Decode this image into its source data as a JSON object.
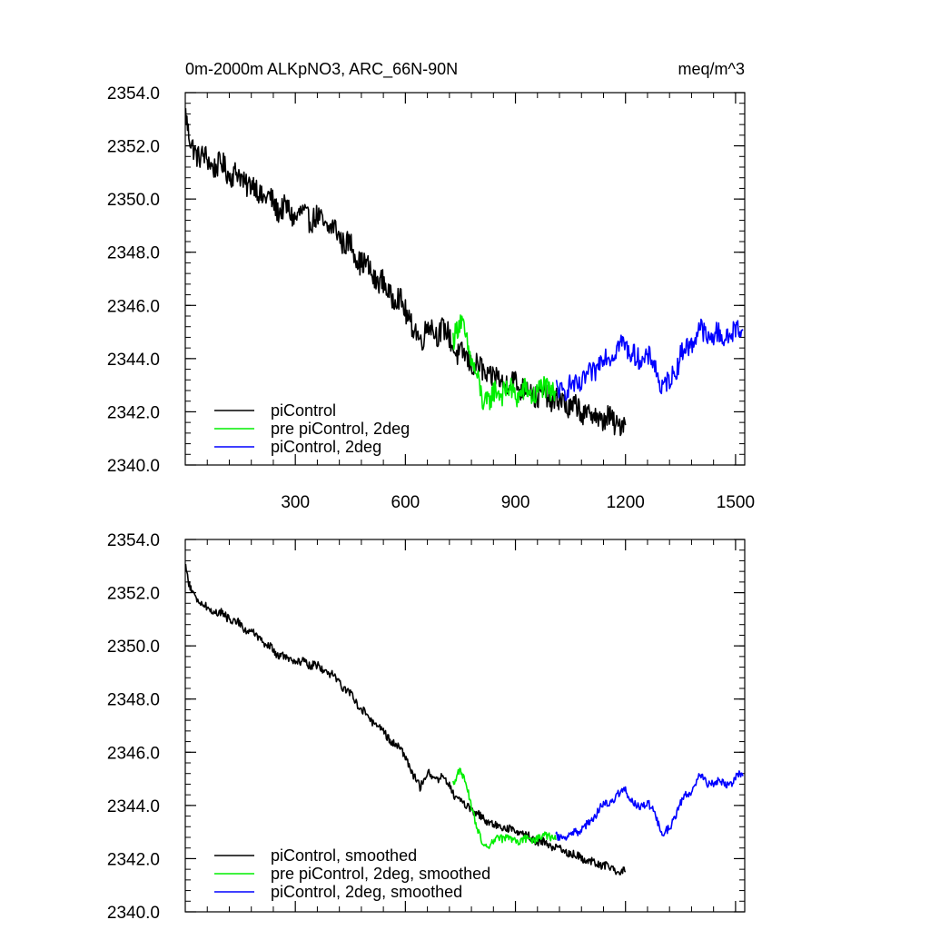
{
  "header": {
    "left_title": "0m-2000m ALKpNO3, ARC_66N-90N",
    "right_title": "meq/m^3"
  },
  "colors": {
    "piControl": "#000000",
    "pre_piControl": "#00ee00",
    "piControl_2deg": "#0000ff"
  },
  "chart_data": [
    {
      "type": "line",
      "xlim": [
        0,
        1525
      ],
      "ylim": [
        2340.0,
        2354.0
      ],
      "x_ticks": [
        300,
        600,
        900,
        1200,
        1500
      ],
      "y_ticks": [
        "2340.0",
        "2342.0",
        "2344.0",
        "2346.0",
        "2348.0",
        "2350.0",
        "2352.0",
        "2354.0"
      ],
      "legend": [
        "piControl",
        "pre piControl, 2deg",
        "piControl, 2deg"
      ],
      "legend_position": "bottom-left",
      "series": [
        {
          "name": "piControl",
          "color": "#000000",
          "noise": 0.45,
          "x": [
            1,
            8,
            15,
            30,
            60,
            100,
            150,
            200,
            250,
            300,
            350,
            400,
            450,
            500,
            550,
            600,
            620,
            640,
            660,
            680,
            700,
            720,
            750,
            780,
            810,
            850,
            900,
            950,
            1000,
            1050,
            1100,
            1150,
            1200
          ],
          "y": [
            2353.2,
            2352.4,
            2352.0,
            2351.8,
            2351.4,
            2351.2,
            2350.8,
            2350.3,
            2349.7,
            2349.4,
            2349.3,
            2348.9,
            2348.2,
            2347.3,
            2346.6,
            2345.9,
            2345.1,
            2344.7,
            2345.3,
            2344.9,
            2345.2,
            2344.7,
            2344.1,
            2343.9,
            2343.5,
            2343.2,
            2343.1,
            2342.7,
            2342.5,
            2342.2,
            2341.9,
            2341.7,
            2341.5
          ]
        },
        {
          "name": "pre piControl, 2deg",
          "color": "#00ee00",
          "noise": 0.45,
          "x": [
            730,
            750,
            770,
            790,
            810,
            830,
            850,
            870,
            890,
            910,
            930,
            950,
            970,
            990,
            1010
          ],
          "y": [
            2344.9,
            2345.3,
            2344.6,
            2343.4,
            2342.5,
            2342.4,
            2342.8,
            2342.8,
            2342.7,
            2342.7,
            2342.7,
            2342.7,
            2342.8,
            2342.9,
            2342.7
          ]
        },
        {
          "name": "piControl, 2deg",
          "color": "#0000ff",
          "noise": 0.4,
          "x": [
            1010,
            1050,
            1080,
            1100,
            1130,
            1160,
            1200,
            1230,
            1260,
            1280,
            1300,
            1320,
            1350,
            1380,
            1400,
            1430,
            1460,
            1490,
            1510,
            1520
          ],
          "y": [
            2342.8,
            2342.9,
            2343.1,
            2343.3,
            2343.9,
            2344.2,
            2344.6,
            2343.9,
            2344.1,
            2343.7,
            2342.9,
            2343.1,
            2344.1,
            2344.6,
            2345.1,
            2344.8,
            2344.9,
            2344.8,
            2345.3,
            2345.1
          ]
        }
      ]
    },
    {
      "type": "line",
      "xlim": [
        0,
        1525
      ],
      "ylim": [
        2340.0,
        2354.0
      ],
      "y_ticks": [
        "2340.0",
        "2342.0",
        "2344.0",
        "2346.0",
        "2348.0",
        "2350.0",
        "2352.0",
        "2354.0"
      ],
      "legend": [
        "piControl, smoothed",
        "pre piControl, 2deg, smoothed",
        "piControl, 2deg, smoothed"
      ],
      "legend_position": "bottom-left",
      "series": [
        {
          "name": "piControl, smoothed",
          "color": "#000000",
          "noise": 0.15,
          "x": [
            1,
            8,
            15,
            30,
            60,
            100,
            150,
            200,
            250,
            300,
            350,
            400,
            450,
            500,
            550,
            600,
            620,
            640,
            660,
            680,
            700,
            720,
            750,
            780,
            810,
            850,
            900,
            950,
            1000,
            1050,
            1100,
            1150,
            1200
          ],
          "y": [
            2353.0,
            2352.4,
            2352.1,
            2351.8,
            2351.4,
            2351.2,
            2350.8,
            2350.3,
            2349.7,
            2349.4,
            2349.3,
            2348.9,
            2348.2,
            2347.3,
            2346.6,
            2345.9,
            2345.1,
            2344.7,
            2345.3,
            2344.9,
            2345.2,
            2344.7,
            2344.1,
            2343.9,
            2343.5,
            2343.2,
            2343.1,
            2342.7,
            2342.5,
            2342.2,
            2341.9,
            2341.7,
            2341.5
          ]
        },
        {
          "name": "pre piControl, 2deg, smoothed",
          "color": "#00ee00",
          "noise": 0.15,
          "x": [
            730,
            750,
            770,
            790,
            810,
            830,
            850,
            870,
            890,
            910,
            930,
            950,
            970,
            990,
            1010
          ],
          "y": [
            2344.9,
            2345.3,
            2344.6,
            2343.4,
            2342.5,
            2342.4,
            2342.8,
            2342.8,
            2342.7,
            2342.7,
            2342.7,
            2342.7,
            2342.8,
            2342.9,
            2342.7
          ]
        },
        {
          "name": "piControl, 2deg, smoothed",
          "color": "#0000ff",
          "noise": 0.15,
          "x": [
            1010,
            1050,
            1080,
            1100,
            1130,
            1160,
            1200,
            1230,
            1260,
            1280,
            1300,
            1320,
            1350,
            1380,
            1400,
            1430,
            1460,
            1490,
            1510,
            1520
          ],
          "y": [
            2342.8,
            2342.9,
            2343.1,
            2343.3,
            2343.9,
            2344.2,
            2344.6,
            2343.9,
            2344.1,
            2343.7,
            2342.9,
            2343.1,
            2344.1,
            2344.6,
            2345.1,
            2344.8,
            2344.9,
            2344.8,
            2345.3,
            2345.1
          ]
        }
      ]
    }
  ]
}
